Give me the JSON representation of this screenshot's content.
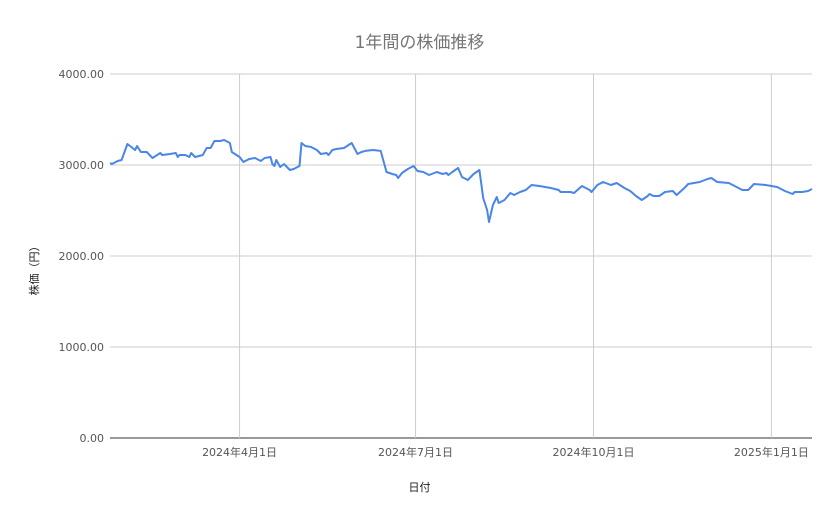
{
  "chart_data": {
    "type": "line",
    "title": "1年間の株価推移",
    "xlabel": "日付",
    "ylabel": "株価（円）",
    "ylim": [
      0,
      4000
    ],
    "xlim": [
      "2024-01-25",
      "2025-01-22"
    ],
    "grid": true,
    "legend": "none",
    "line_color": "#4a86e8",
    "y_ticks": [
      "0.00",
      "1000.00",
      "2000.00",
      "3000.00",
      "4000.00"
    ],
    "y_tick_values": [
      0,
      1000,
      2000,
      3000,
      4000
    ],
    "x_ticks": [
      {
        "date": "2024-04-01",
        "label": "2024年4月1日"
      },
      {
        "date": "2024-07-01",
        "label": "2024年7月1日"
      },
      {
        "date": "2024-10-01",
        "label": "2024年10月1日"
      },
      {
        "date": "2025-01-01",
        "label": "2025年1月1日"
      }
    ],
    "series": [
      {
        "points": [
          [
            "2024-01-25",
            3022
          ],
          [
            "2024-01-26",
            3011
          ],
          [
            "2024-01-29",
            3044
          ],
          [
            "2024-01-31",
            3055
          ],
          [
            "2024-02-03",
            3231
          ],
          [
            "2024-02-05",
            3198
          ],
          [
            "2024-02-07",
            3165
          ],
          [
            "2024-02-08",
            3209
          ],
          [
            "2024-02-10",
            3143
          ],
          [
            "2024-02-13",
            3143
          ],
          [
            "2024-02-16",
            3077
          ],
          [
            "2024-02-20",
            3132
          ],
          [
            "2024-02-21",
            3110
          ],
          [
            "2024-02-25",
            3121
          ],
          [
            "2024-02-28",
            3132
          ],
          [
            "2024-02-29",
            3088
          ],
          [
            "2024-03-01",
            3110
          ],
          [
            "2024-03-04",
            3110
          ],
          [
            "2024-03-06",
            3088
          ],
          [
            "2024-03-07",
            3132
          ],
          [
            "2024-03-09",
            3088
          ],
          [
            "2024-03-13",
            3110
          ],
          [
            "2024-03-15",
            3187
          ],
          [
            "2024-03-17",
            3187
          ],
          [
            "2024-03-19",
            3264
          ],
          [
            "2024-03-22",
            3264
          ],
          [
            "2024-03-24",
            3275
          ],
          [
            "2024-03-27",
            3242
          ],
          [
            "2024-03-28",
            3143
          ],
          [
            "2024-04-01",
            3088
          ],
          [
            "2024-04-03",
            3033
          ],
          [
            "2024-04-06",
            3066
          ],
          [
            "2024-04-09",
            3077
          ],
          [
            "2024-04-12",
            3044
          ],
          [
            "2024-04-14",
            3077
          ],
          [
            "2024-04-17",
            3088
          ],
          [
            "2024-04-18",
            3011
          ],
          [
            "2024-04-19",
            2989
          ],
          [
            "2024-04-20",
            3055
          ],
          [
            "2024-04-22",
            2978
          ],
          [
            "2024-04-24",
            3011
          ],
          [
            "2024-04-27",
            2945
          ],
          [
            "2024-04-29",
            2956
          ],
          [
            "2024-05-02",
            2989
          ],
          [
            "2024-05-03",
            3242
          ],
          [
            "2024-05-05",
            3209
          ],
          [
            "2024-05-08",
            3198
          ],
          [
            "2024-05-11",
            3165
          ],
          [
            "2024-05-13",
            3121
          ],
          [
            "2024-05-16",
            3132
          ],
          [
            "2024-05-17",
            3110
          ],
          [
            "2024-05-19",
            3165
          ],
          [
            "2024-05-21",
            3176
          ],
          [
            "2024-05-25",
            3187
          ],
          [
            "2024-05-29",
            3242
          ],
          [
            "2024-06-01",
            3121
          ],
          [
            "2024-06-03",
            3143
          ],
          [
            "2024-06-05",
            3155
          ],
          [
            "2024-06-09",
            3165
          ],
          [
            "2024-06-13",
            3155
          ],
          [
            "2024-06-16",
            2923
          ],
          [
            "2024-06-19",
            2901
          ],
          [
            "2024-06-21",
            2890
          ],
          [
            "2024-06-22",
            2857
          ],
          [
            "2024-06-24",
            2912
          ],
          [
            "2024-06-27",
            2956
          ],
          [
            "2024-06-30",
            2989
          ],
          [
            "2024-07-02",
            2934
          ],
          [
            "2024-07-05",
            2923
          ],
          [
            "2024-07-08",
            2890
          ],
          [
            "2024-07-12",
            2923
          ],
          [
            "2024-07-15",
            2901
          ],
          [
            "2024-07-17",
            2912
          ],
          [
            "2024-07-18",
            2890
          ],
          [
            "2024-07-20",
            2923
          ],
          [
            "2024-07-23",
            2967
          ],
          [
            "2024-07-25",
            2868
          ],
          [
            "2024-07-28",
            2835
          ],
          [
            "2024-07-31",
            2901
          ],
          [
            "2024-08-03",
            2945
          ],
          [
            "2024-08-05",
            2637
          ],
          [
            "2024-08-07",
            2505
          ],
          [
            "2024-08-08",
            2374
          ],
          [
            "2024-08-10",
            2560
          ],
          [
            "2024-08-12",
            2648
          ],
          [
            "2024-08-13",
            2582
          ],
          [
            "2024-08-16",
            2615
          ],
          [
            "2024-08-19",
            2692
          ],
          [
            "2024-08-21",
            2670
          ],
          [
            "2024-08-24",
            2703
          ],
          [
            "2024-08-27",
            2725
          ],
          [
            "2024-08-30",
            2780
          ],
          [
            "2024-09-03",
            2769
          ],
          [
            "2024-09-09",
            2747
          ],
          [
            "2024-09-13",
            2725
          ],
          [
            "2024-09-14",
            2703
          ],
          [
            "2024-09-19",
            2703
          ],
          [
            "2024-09-21",
            2692
          ],
          [
            "2024-09-25",
            2769
          ],
          [
            "2024-09-29",
            2725
          ],
          [
            "2024-09-30",
            2703
          ],
          [
            "2024-10-03",
            2780
          ],
          [
            "2024-10-06",
            2813
          ],
          [
            "2024-10-10",
            2780
          ],
          [
            "2024-10-13",
            2802
          ],
          [
            "2024-10-17",
            2747
          ],
          [
            "2024-10-20",
            2714
          ],
          [
            "2024-10-23",
            2659
          ],
          [
            "2024-10-26",
            2615
          ],
          [
            "2024-10-29",
            2659
          ],
          [
            "2024-10-30",
            2681
          ],
          [
            "2024-11-01",
            2659
          ],
          [
            "2024-11-04",
            2659
          ],
          [
            "2024-11-07",
            2703
          ],
          [
            "2024-11-11",
            2714
          ],
          [
            "2024-11-13",
            2670
          ],
          [
            "2024-11-17",
            2747
          ],
          [
            "2024-11-19",
            2791
          ],
          [
            "2024-11-22",
            2802
          ],
          [
            "2024-11-25",
            2813
          ],
          [
            "2024-11-29",
            2846
          ],
          [
            "2024-12-01",
            2857
          ],
          [
            "2024-12-04",
            2813
          ],
          [
            "2024-12-10",
            2802
          ],
          [
            "2024-12-12",
            2780
          ],
          [
            "2024-12-17",
            2725
          ],
          [
            "2024-12-20",
            2725
          ],
          [
            "2024-12-23",
            2791
          ],
          [
            "2024-12-29",
            2780
          ],
          [
            "2025-01-04",
            2758
          ],
          [
            "2025-01-08",
            2714
          ],
          [
            "2025-01-12",
            2681
          ],
          [
            "2025-01-13",
            2703
          ],
          [
            "2025-01-17",
            2703
          ],
          [
            "2025-01-20",
            2714
          ],
          [
            "2025-01-22",
            2736
          ]
        ]
      }
    ]
  }
}
